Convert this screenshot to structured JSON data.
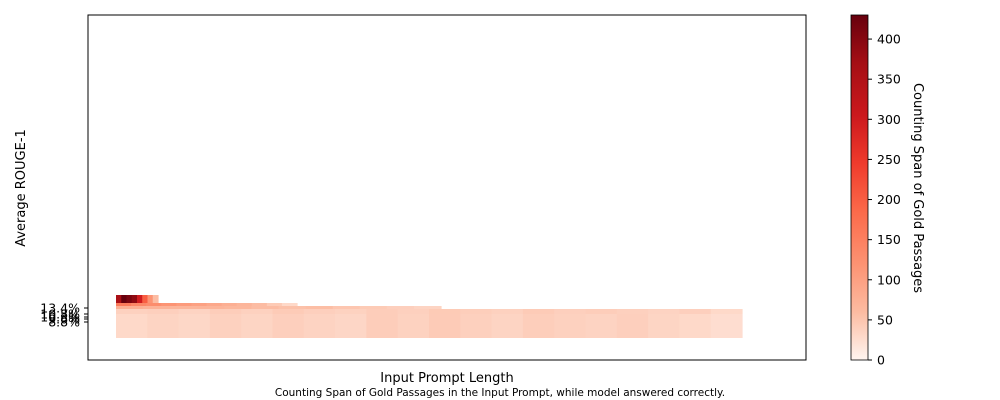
{
  "chart_data": {
    "type": "heatmap",
    "xlabel": "Input Prompt Length",
    "ylabel": "Average ROUGE-1",
    "caption": "Counting Span of Gold Passages in the Input Prompt, while model answered correctly.",
    "x_ticks": [],
    "y_ticks": [
      "13.4%",
      "10.8%",
      "10.3%",
      "9.6%",
      "8.8%"
    ],
    "colorbar": {
      "label": "Counting Span of Gold Passages",
      "min": 0,
      "max": 430,
      "ticks": [
        "0",
        "50",
        "100",
        "150",
        "200",
        "250",
        "300",
        "350",
        "400"
      ],
      "tick_values": [
        0,
        50,
        100,
        150,
        200,
        250,
        300,
        350,
        400
      ],
      "colormap": "Reds",
      "colors": [
        "#fff5f0",
        "#fcbba1",
        "#fc9272",
        "#fb6a4a",
        "#ef3b2c",
        "#cb181d",
        "#a50f15",
        "#67000d"
      ]
    },
    "rows": [
      {
        "label": "13.4%",
        "segments": [
          360,
          430,
          410,
          390,
          300,
          200,
          120,
          60
        ]
      },
      {
        "label": "10.8%",
        "segments": [
          160,
          140,
          130,
          120,
          110,
          100,
          90,
          80,
          70,
          60,
          45,
          30
        ]
      },
      {
        "label": "10.3%",
        "segments": [
          80,
          75,
          70,
          72,
          68,
          60,
          55,
          58,
          50,
          45,
          40,
          35
        ]
      },
      {
        "label": "9.6%",
        "segments": [
          38,
          40,
          36,
          42,
          38,
          44,
          40,
          37,
          42,
          39,
          45,
          41,
          38,
          44,
          40,
          42,
          39,
          36,
          40,
          30
        ]
      },
      {
        "label": "8.8%",
        "segments": [
          30,
          35,
          32,
          38,
          34,
          40,
          36,
          33,
          42,
          37,
          44,
          39,
          35,
          41,
          38,
          36,
          40,
          34,
          30,
          25
        ]
      }
    ]
  }
}
